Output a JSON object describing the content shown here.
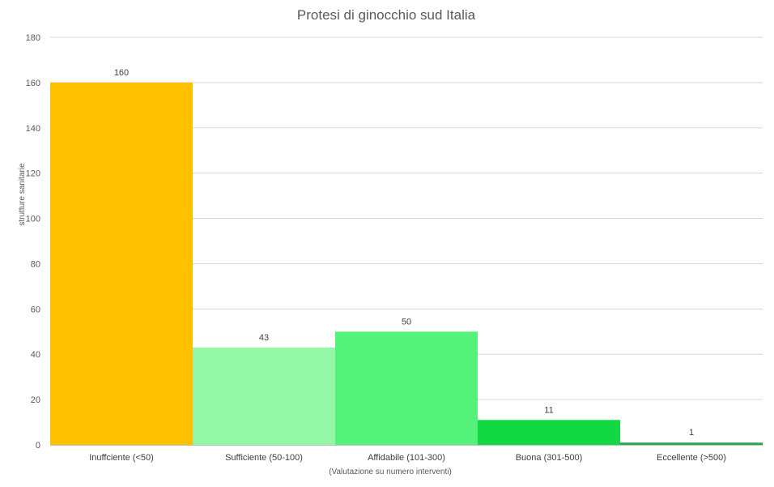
{
  "chart_data": {
    "type": "bar",
    "title": "Protesi di ginocchio sud Italia",
    "xlabel": "(Valutazione su numero interventi)",
    "ylabel": "strutture sanitarie",
    "ylim": [
      0,
      180
    ],
    "yticks": [
      0,
      20,
      40,
      60,
      80,
      100,
      120,
      140,
      160,
      180
    ],
    "grid": true,
    "legend": "none",
    "categories": [
      "Inuffciente (<50)",
      "Sufficiente (50-100)",
      "Affidabile (101-300)",
      "Buona (301-500)",
      "Eccellente (>500)"
    ],
    "values": [
      160,
      43,
      50,
      11,
      1
    ],
    "colors": [
      "#FFC000",
      "#94F7A8",
      "#54F27A",
      "#12D844",
      "#2EA84A"
    ]
  }
}
